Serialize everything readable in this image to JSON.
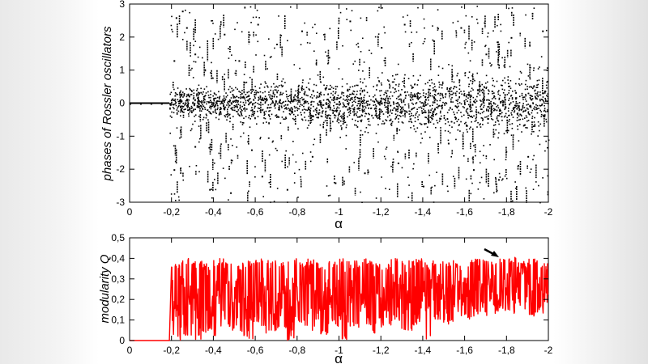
{
  "chart_data": [
    {
      "type": "scatter",
      "xlabel": "α",
      "ylabel": "phases of Rossler oscillators",
      "xlim": [
        0,
        -2
      ],
      "ylim": [
        -3,
        3
      ],
      "xticks": [
        "0",
        "-0,2",
        "-0,4",
        "-0,6",
        "-0,8",
        "-1",
        "-1,2",
        "-1,4",
        "-1,6",
        "-1,8",
        "-2"
      ],
      "yticks": [
        "3",
        "2",
        "1",
        "0",
        "-1",
        "-2",
        "-3"
      ],
      "series": [
        {
          "color": "#000000",
          "description_points": [
            [
              0.0,
              0.0
            ],
            [
              -0.05,
              0.0
            ],
            [
              -0.1,
              0.0
            ],
            [
              -0.15,
              0.0
            ],
            [
              -0.19,
              0.0
            ],
            [
              -0.21,
              1.3
            ],
            [
              -0.21,
              -2.0
            ],
            [
              -0.22,
              2.6
            ],
            [
              -0.25,
              2.8
            ],
            [
              -0.27,
              2.3
            ],
            [
              -0.31,
              1.5
            ],
            [
              -0.31,
              -1.3
            ],
            [
              -0.38,
              -2.6
            ],
            [
              -0.45,
              2.1
            ],
            [
              -0.48,
              -2.7
            ],
            [
              -0.52,
              1.3
            ],
            [
              -0.58,
              -1.4
            ],
            [
              -0.61,
              2.4
            ],
            [
              -0.63,
              -2.2
            ],
            [
              -0.7,
              1.8
            ],
            [
              -0.75,
              -2.6
            ],
            [
              -0.82,
              2.2
            ],
            [
              -0.87,
              -1.6
            ],
            [
              -0.95,
              1.4
            ],
            [
              -0.98,
              -2.4
            ],
            [
              -1.05,
              2.5
            ],
            [
              -1.12,
              -2.1
            ],
            [
              -1.2,
              1.7
            ],
            [
              -1.28,
              -1.8
            ],
            [
              -1.31,
              2.4
            ],
            [
              -1.4,
              -2.5
            ],
            [
              -1.45,
              1.9
            ],
            [
              -1.52,
              -1.2
            ],
            [
              -1.58,
              2.3
            ],
            [
              -1.64,
              -2.0
            ],
            [
              -1.7,
              1.5
            ],
            [
              -1.76,
              -2.3
            ],
            [
              -1.82,
              2.0
            ],
            [
              -1.9,
              -1.6
            ],
            [
              -1.97,
              2.2
            ]
          ]
        }
      ]
    },
    {
      "type": "line",
      "xlabel": "α",
      "ylabel": "modularity Q",
      "xlim": [
        0,
        -2
      ],
      "ylim": [
        0,
        0.5
      ],
      "xticks": [
        "0",
        "-0,2",
        "-0,4",
        "-0,6",
        "-0,8",
        "-1",
        "-1,2",
        "-1,4",
        "-1,6",
        "-1,8",
        "-2"
      ],
      "yticks": [
        "0,5",
        "0,4",
        "0,3",
        "0,2",
        "0,1",
        "0"
      ],
      "series": [
        {
          "color": "#ff0000",
          "x": [
            0.0,
            -0.05,
            -0.1,
            -0.15,
            -0.19,
            -0.2,
            -0.25,
            -0.3,
            -0.35,
            -0.4,
            -0.45,
            -0.5,
            -0.55,
            -0.6,
            -0.65,
            -0.7,
            -0.75,
            -0.8,
            -0.85,
            -0.9,
            -0.95,
            -1.0,
            -1.05,
            -1.1,
            -1.15,
            -1.2,
            -1.25,
            -1.3,
            -1.35,
            -1.4,
            -1.45,
            -1.5,
            -1.55,
            -1.6,
            -1.65,
            -1.7,
            -1.75,
            -1.8,
            -1.85,
            -1.9,
            -1.95,
            -2.0
          ],
          "values": [
            0.0,
            0.0,
            0.0,
            0.0,
            0.0,
            0.19,
            0.18,
            0.17,
            0.2,
            0.16,
            0.19,
            0.18,
            0.17,
            0.2,
            0.19,
            0.21,
            0.18,
            0.17,
            0.22,
            0.2,
            0.18,
            0.21,
            0.19,
            0.22,
            0.2,
            0.18,
            0.23,
            0.21,
            0.19,
            0.24,
            0.22,
            0.2,
            0.23,
            0.25,
            0.22,
            0.26,
            0.24,
            0.23,
            0.25,
            0.22,
            0.24,
            0.23
          ],
          "upper": [
            0.0,
            0.0,
            0.0,
            0.0,
            0.0,
            0.39,
            0.4,
            0.39,
            0.38,
            0.4,
            0.39,
            0.38,
            0.39,
            0.4,
            0.39,
            0.38,
            0.4,
            0.39,
            0.4,
            0.38,
            0.39,
            0.4,
            0.39,
            0.4,
            0.39,
            0.38,
            0.4,
            0.39,
            0.4,
            0.38,
            0.4,
            0.39,
            0.38,
            0.39,
            0.4,
            0.39,
            0.4,
            0.41,
            0.39,
            0.4,
            0.38,
            0.39
          ],
          "lower": [
            0.0,
            0.0,
            0.0,
            0.0,
            0.0,
            0.0,
            0.02,
            0.0,
            0.04,
            0.0,
            0.05,
            0.02,
            0.0,
            0.06,
            0.03,
            0.05,
            0.0,
            0.07,
            0.04,
            0.02,
            0.06,
            0.0,
            0.05,
            0.08,
            0.03,
            0.06,
            0.09,
            0.04,
            0.07,
            0.0,
            0.1,
            0.08,
            0.12,
            0.1,
            0.13,
            0.11,
            0.14,
            0.12,
            0.15,
            0.11,
            0.13,
            0.1
          ]
        }
      ]
    }
  ]
}
